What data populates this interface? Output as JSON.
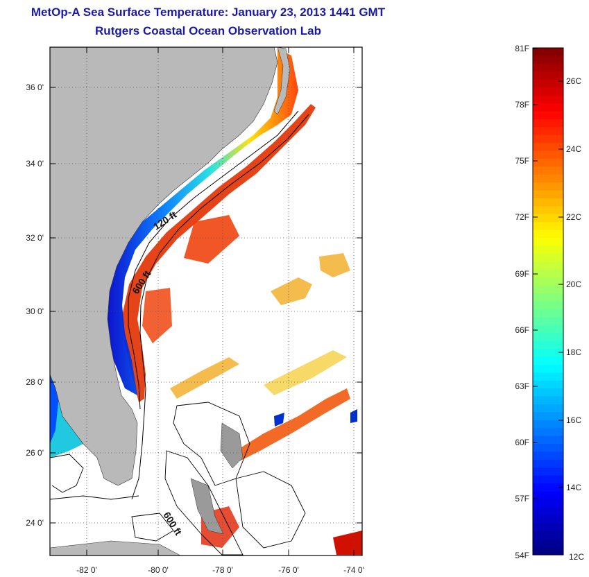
{
  "header": {
    "title": "MetOp-A Sea Surface Temperature:  January 23, 2013 1441 GMT",
    "subtitle": "Rutgers Coastal Ocean Observation Lab"
  },
  "map": {
    "lat_ticks": [
      "36 0'",
      "34 0'",
      "32 0'",
      "30 0'",
      "28 0'",
      "26 0'",
      "24 0'"
    ],
    "lon_ticks": [
      "-82 0'",
      "-80 0'",
      "-78 0'",
      "-76 0'",
      "-74 0'"
    ],
    "contour_labels": [
      "120 ft",
      "600 ft",
      "600 ft"
    ],
    "colors": {
      "land": "#b9b9b9",
      "ocean_no_data": "#ffffff"
    }
  },
  "colorbar": {
    "fahrenheit_labels": [
      "81F",
      "78F",
      "75F",
      "72F",
      "69F",
      "66F",
      "63F",
      "60F",
      "57F",
      "54F"
    ],
    "celsius_labels": [
      "26C",
      "24C",
      "22C",
      "20C",
      "18C",
      "16C",
      "14C",
      "12C"
    ],
    "colormap": "jet"
  }
}
